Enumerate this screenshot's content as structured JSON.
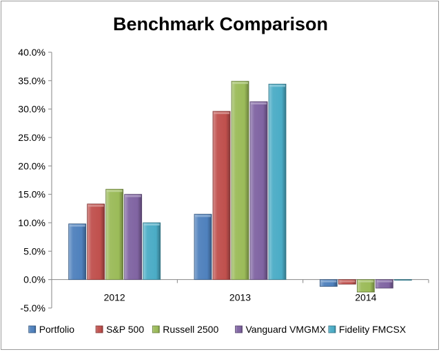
{
  "chart_data": {
    "type": "bar",
    "style": "3d-bevel",
    "title": "Benchmark Comparison",
    "xlabel": "",
    "ylabel": "",
    "categories": [
      "2012",
      "2013",
      "2014"
    ],
    "ylim": [
      -0.05,
      0.4
    ],
    "yticks": [
      -0.05,
      0.0,
      0.05,
      0.1,
      0.15,
      0.2,
      0.25,
      0.3,
      0.35,
      0.4
    ],
    "ytick_labels": [
      "-5.0%",
      "0.0%",
      "5.0%",
      "10.0%",
      "15.0%",
      "20.0%",
      "25.0%",
      "30.0%",
      "35.0%",
      "40.0%"
    ],
    "grid": false,
    "legend_position": "bottom",
    "series": [
      {
        "name": "Portfolio",
        "color": "#4f81bd",
        "values": [
          0.098,
          0.115,
          -0.012
        ]
      },
      {
        "name": "S&P 500",
        "color": "#c0504d",
        "values": [
          0.133,
          0.296,
          -0.008
        ]
      },
      {
        "name": "Russell 2500",
        "color": "#9bbb59",
        "values": [
          0.159,
          0.349,
          -0.022
        ]
      },
      {
        "name": "Vanguard VMGMX",
        "color": "#8064a2",
        "values": [
          0.15,
          0.313,
          -0.015
        ]
      },
      {
        "name": "Fidelity FMCSX",
        "color": "#4bacc6",
        "values": [
          0.1,
          0.344,
          0.0
        ]
      }
    ]
  }
}
